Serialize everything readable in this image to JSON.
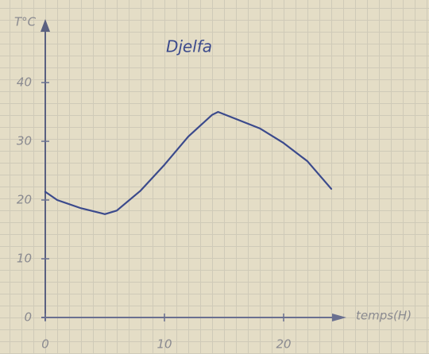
{
  "chart_data": {
    "type": "line",
    "title": "Djelfa",
    "y_label": "T°C",
    "x_label": "temps(H)",
    "x": [
      0,
      1,
      3,
      5,
      6,
      8,
      10,
      12,
      14,
      14.5,
      16,
      18,
      20,
      22,
      24
    ],
    "series": [
      {
        "color": "#3b4a8c",
        "values": [
          21.4,
          20,
          18.6,
          17.6,
          18.2,
          21.6,
          26,
          30.8,
          34.5,
          35,
          33.8,
          32.2,
          29.7,
          26.6,
          21.9
        ]
      }
    ],
    "xlim": [
      0,
      25
    ],
    "ylim": [
      0,
      50
    ],
    "xticks": [
      0,
      10,
      20
    ],
    "yticks": [
      0,
      10,
      20,
      30,
      40
    ]
  }
}
